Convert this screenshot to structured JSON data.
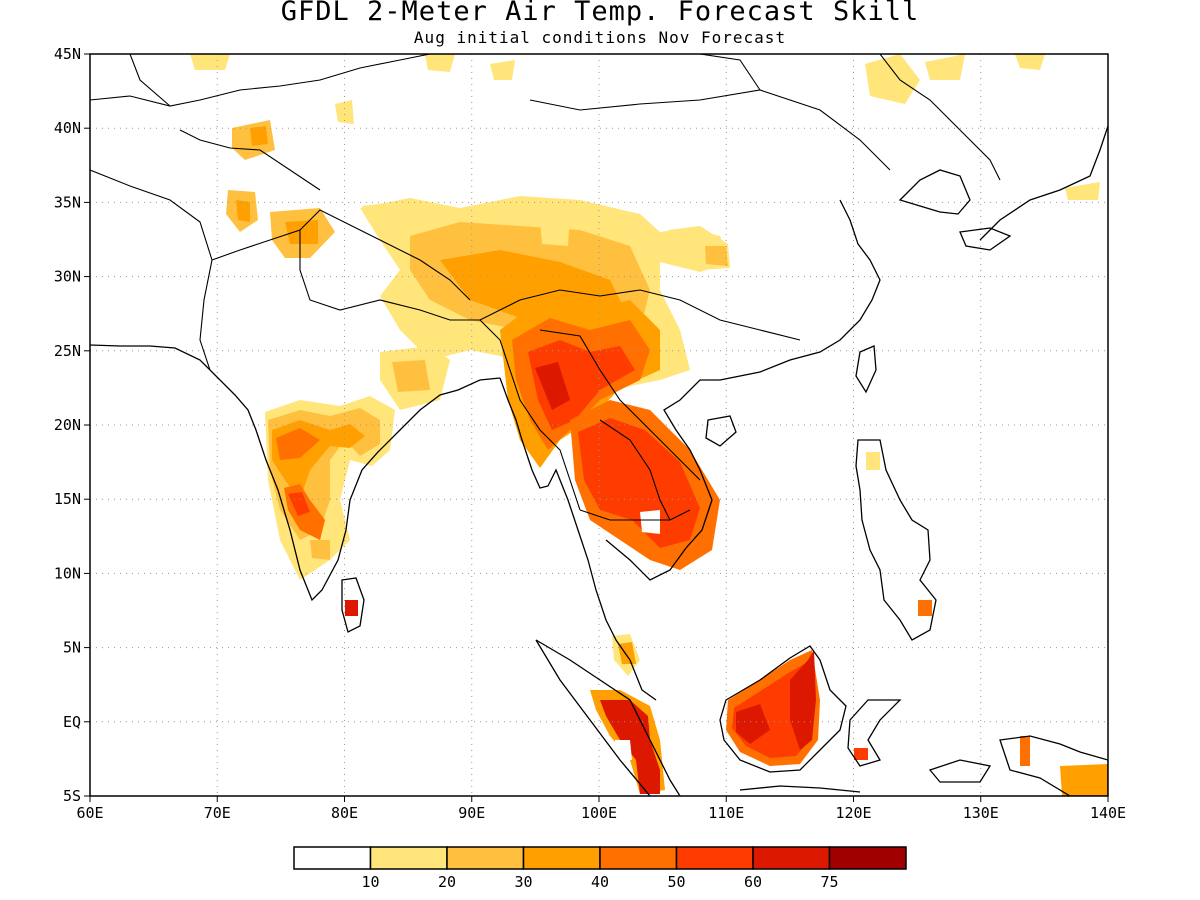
{
  "title": "GFDL 2-Meter Air Temp. Forecast Skill",
  "subtitle": "Aug initial conditions  Nov Forecast",
  "map": {
    "lon_range": [
      60,
      140
    ],
    "lat_range": [
      -5,
      45
    ],
    "lon_labels": [
      "60E",
      "70E",
      "80E",
      "90E",
      "100E",
      "110E",
      "120E",
      "130E",
      "140E"
    ],
    "lat_labels": [
      "45N",
      "40N",
      "35N",
      "30N",
      "25N",
      "20N",
      "15N",
      "10N",
      "5N",
      "EQ",
      "5S"
    ],
    "grid": true,
    "coastlines": true,
    "country_borders": true
  },
  "colorbar": {
    "colors": [
      "#ffffff",
      "#ffe57a",
      "#ffc040",
      "#ffa000",
      "#ff7000",
      "#ff3c00",
      "#dc1800",
      "#a00000"
    ],
    "labels": [
      "10",
      "20",
      "30",
      "40",
      "50",
      "60",
      "75"
    ]
  },
  "skill_regions": [
    {
      "name": "central-india",
      "level": 4
    },
    {
      "name": "south-india",
      "level": 5
    },
    {
      "name": "sri-lanka",
      "level": 6
    },
    {
      "name": "tibetan-plateau",
      "level": 2
    },
    {
      "name": "myanmar",
      "level": 5
    },
    {
      "name": "thailand-laos-cambodia",
      "level": 5
    },
    {
      "name": "sumatra",
      "level": 6
    },
    {
      "name": "borneo",
      "level": 6
    },
    {
      "name": "malay-peninsula",
      "level": 3
    }
  ]
}
